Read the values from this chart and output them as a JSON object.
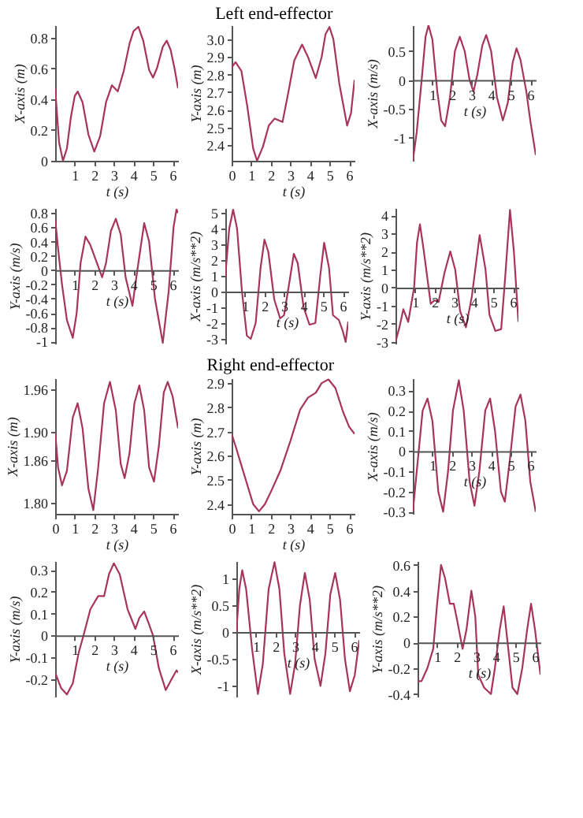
{
  "chart_data": [
    {
      "type": "line",
      "xlabel": "t (s)",
      "ylabel": "X-axis (m)",
      "color": "#a8345a",
      "xlim": [
        0,
        6.28
      ],
      "xticks": [
        1,
        2,
        3,
        4,
        5,
        6
      ],
      "ylim": [
        0,
        0.88
      ],
      "yticks": [
        0,
        0.2,
        0.4,
        0.6,
        0.8
      ],
      "x": [
        0,
        0.2,
        0.4,
        0.6,
        0.8,
        1.0,
        1.15,
        1.4,
        1.7,
        2.0,
        2.3,
        2.6,
        2.9,
        3.2,
        3.5,
        3.8,
        4.0,
        4.25,
        4.5,
        4.8,
        5.0,
        5.2,
        5.5,
        5.7,
        5.9,
        6.1,
        6.28
      ],
      "values": [
        0.47,
        0.12,
        0.0,
        0.08,
        0.28,
        0.42,
        0.45,
        0.38,
        0.17,
        0.06,
        0.16,
        0.38,
        0.49,
        0.45,
        0.58,
        0.76,
        0.84,
        0.87,
        0.78,
        0.59,
        0.54,
        0.6,
        0.74,
        0.78,
        0.72,
        0.6,
        0.47
      ]
    },
    {
      "type": "line",
      "title": "Left end-effector",
      "xlabel": "t (s)",
      "ylabel": "Y-axis (m)",
      "color": "#a8345a",
      "xlim": [
        0,
        6.28
      ],
      "xticks": [
        0,
        1,
        2,
        3,
        4,
        5,
        6
      ],
      "ylim": [
        2.31,
        3.08
      ],
      "yticks": [
        2.4,
        2.5,
        2.6,
        2.7,
        2.8,
        2.9,
        {
          "value": 3,
          "label": "3.0"
        }
      ],
      "x": [
        0,
        0.2,
        0.5,
        0.8,
        1.1,
        1.3,
        1.6,
        1.9,
        2.2,
        2.6,
        2.9,
        3.2,
        3.6,
        3.9,
        4.3,
        4.6,
        4.8,
        5.0,
        5.2,
        5.5,
        5.9,
        6.1,
        6.28
      ],
      "values": [
        2.84,
        2.87,
        2.82,
        2.62,
        2.38,
        2.31,
        2.39,
        2.51,
        2.55,
        2.53,
        2.7,
        2.88,
        2.97,
        2.9,
        2.78,
        2.9,
        3.03,
        3.07,
        3.0,
        2.75,
        2.51,
        2.58,
        2.77
      ]
    },
    {
      "type": "line",
      "xlabel": "t (s)",
      "ylabel": "X-axis (m/s)",
      "color": "#a8345a",
      "xlim": [
        0,
        6.28
      ],
      "xticks": [
        1,
        2,
        3,
        4,
        5,
        6
      ],
      "ylim": [
        -1.4,
        0.95
      ],
      "yticks": [
        -1,
        -0.5,
        0,
        0.5
      ],
      "x": [
        0,
        0.2,
        0.45,
        0.65,
        0.8,
        1.0,
        1.25,
        1.45,
        1.65,
        1.9,
        2.15,
        2.4,
        2.65,
        2.9,
        3.1,
        3.3,
        3.55,
        3.75,
        4.0,
        4.3,
        4.6,
        4.85,
        5.1,
        5.3,
        5.5,
        5.8,
        6.0,
        6.28
      ],
      "values": [
        -1.4,
        -0.9,
        0,
        0.75,
        0.95,
        0.7,
        -0.2,
        -0.7,
        -0.8,
        -0.3,
        0.5,
        0.75,
        0.5,
        0.0,
        -0.2,
        0.1,
        0.6,
        0.78,
        0.5,
        -0.3,
        -0.7,
        -0.4,
        0.3,
        0.55,
        0.35,
        -0.2,
        -0.7,
        -1.3
      ]
    },
    {
      "type": "line",
      "xlabel": "t (s)",
      "ylabel": "Y-axis (m/s)",
      "color": "#a8345a",
      "xlim": [
        0,
        6.28
      ],
      "xticks": [
        1,
        2,
        3,
        4,
        5,
        6
      ],
      "ylim": [
        -1.03,
        0.87
      ],
      "yticks": [
        -1,
        -0.8,
        -0.6,
        -0.4,
        -0.2,
        0,
        0.2,
        0.4,
        0.6,
        0.8
      ],
      "x": [
        0,
        0.15,
        0.35,
        0.6,
        0.9,
        1.1,
        1.3,
        1.55,
        1.8,
        2.0,
        2.2,
        2.4,
        2.6,
        2.85,
        3.1,
        3.35,
        3.6,
        3.95,
        4.2,
        4.55,
        4.8,
        5.1,
        5.5,
        5.8,
        6.05,
        6.2,
        6.28
      ],
      "values": [
        0.72,
        0.3,
        -0.2,
        -0.7,
        -0.95,
        -0.6,
        0.1,
        0.47,
        0.35,
        0.2,
        0.05,
        -0.1,
        0.1,
        0.55,
        0.72,
        0.5,
        -0.1,
        -0.5,
        0.0,
        0.66,
        0.4,
        -0.4,
        -1.02,
        -0.3,
        0.6,
        0.85,
        0.8
      ]
    },
    {
      "type": "line",
      "xlabel": "t (s)",
      "ylabel": "X-axis (m/s**2)",
      "color": "#a8345a",
      "xlim": [
        0,
        6.28
      ],
      "xticks": [
        1,
        2,
        3,
        4,
        5,
        6
      ],
      "ylim": [
        -3.3,
        5.3
      ],
      "yticks": [
        -3,
        -2,
        -1,
        0,
        1,
        2,
        3,
        4,
        5
      ],
      "x": [
        0,
        0.2,
        0.4,
        0.6,
        0.85,
        1.1,
        1.3,
        1.55,
        1.8,
        2.0,
        2.2,
        2.5,
        2.8,
        3.0,
        3.3,
        3.5,
        3.7,
        4.0,
        4.3,
        4.6,
        4.85,
        5.05,
        5.3,
        5.5,
        5.8,
        6.0,
        6.15,
        6.28
      ],
      "values": [
        1.0,
        4.0,
        5.2,
        4.0,
        0.0,
        -2.8,
        -3.0,
        -2.0,
        1.5,
        3.3,
        2.5,
        -0.5,
        -1.7,
        -1.5,
        0.8,
        2.4,
        1.8,
        -1.0,
        -2.1,
        -2.0,
        1.0,
        3.1,
        1.5,
        -1.5,
        -1.8,
        -2.5,
        -3.2,
        -1.9
      ]
    },
    {
      "type": "line",
      "xlabel": "t (s)",
      "ylabel": "Y-axis (m/s**2)",
      "color": "#a8345a",
      "xlim": [
        0,
        6.28
      ],
      "xticks": [
        1,
        2,
        3,
        4,
        5,
        6
      ],
      "ylim": [
        -3.1,
        4.4
      ],
      "yticks": [
        -3,
        -2,
        -1,
        0,
        1,
        2,
        3,
        4
      ],
      "x": [
        0,
        0.2,
        0.4,
        0.65,
        0.95,
        1.1,
        1.25,
        1.45,
        1.8,
        2.0,
        2.2,
        2.5,
        2.8,
        3.05,
        3.3,
        3.6,
        3.9,
        4.3,
        4.6,
        4.8,
        5.1,
        5.4,
        5.6,
        5.85,
        6.05,
        6.28
      ],
      "values": [
        -3.0,
        -2.2,
        -1.2,
        -1.9,
        0.0,
        2.5,
        3.5,
        2.0,
        -0.9,
        -0.7,
        -0.8,
        0.8,
        2.0,
        1.0,
        -1.3,
        -2.2,
        -0.5,
        2.9,
        1.0,
        -1.5,
        -2.4,
        -2.3,
        0.5,
        4.3,
        2.0,
        -1.9
      ]
    },
    {
      "type": "line",
      "xlabel": "t (s)",
      "ylabel": "X-axis (m)",
      "color": "#a8345a",
      "xlim": [
        0,
        6.28
      ],
      "xticks": [
        0,
        1,
        2,
        3,
        4,
        5,
        6
      ],
      "ylim": [
        1.785,
        1.975
      ],
      "yticks": [
        {
          "value": 1.8,
          "label": "1.80"
        },
        1.86,
        {
          "value": 1.9,
          "label": "1.90"
        },
        1.96
      ],
      "x": [
        0,
        0.15,
        0.35,
        0.6,
        0.9,
        1.15,
        1.4,
        1.7,
        1.95,
        2.2,
        2.5,
        2.8,
        3.1,
        3.35,
        3.55,
        3.8,
        4.05,
        4.3,
        4.55,
        4.8,
        5.05,
        5.3,
        5.55,
        5.75,
        6.0,
        6.28
      ],
      "values": [
        1.9,
        1.85,
        1.825,
        1.845,
        1.92,
        1.94,
        1.905,
        1.82,
        1.79,
        1.85,
        1.94,
        1.97,
        1.93,
        1.855,
        1.835,
        1.87,
        1.94,
        1.965,
        1.93,
        1.85,
        1.83,
        1.88,
        1.955,
        1.97,
        1.95,
        1.905
      ]
    },
    {
      "type": "line",
      "title": "Right end-effector",
      "xlabel": "t (s)",
      "ylabel": "Y-axis (m)",
      "color": "#a8345a",
      "xlim": [
        0,
        6.28
      ],
      "xticks": [
        0,
        1,
        2,
        3,
        4,
        5,
        6
      ],
      "ylim": [
        2.36,
        2.92
      ],
      "yticks": [
        2.4,
        2.5,
        2.6,
        2.7,
        2.8,
        2.9
      ],
      "x": [
        0,
        0.2,
        0.5,
        0.8,
        1.1,
        1.4,
        1.7,
        2.0,
        2.5,
        3.0,
        3.5,
        3.9,
        4.3,
        4.6,
        4.95,
        5.3,
        5.7,
        6.0,
        6.28
      ],
      "values": [
        2.69,
        2.64,
        2.56,
        2.48,
        2.4,
        2.37,
        2.4,
        2.45,
        2.54,
        2.66,
        2.79,
        2.84,
        2.86,
        2.9,
        2.915,
        2.88,
        2.78,
        2.72,
        2.69
      ]
    },
    {
      "type": "line",
      "xlabel": "t (s)",
      "ylabel": "X-axis (m/s)",
      "color": "#a8345a",
      "xlim": [
        0,
        6.28
      ],
      "xticks": [
        1,
        2,
        3,
        4,
        5,
        6
      ],
      "ylim": [
        -0.31,
        0.36
      ],
      "yticks": [
        -0.3,
        -0.2,
        -0.1,
        0,
        0.1,
        0.2,
        0.3
      ],
      "x": [
        0,
        0.3,
        0.5,
        0.75,
        1.0,
        1.3,
        1.55,
        1.8,
        2.05,
        2.35,
        2.6,
        2.9,
        3.15,
        3.4,
        3.7,
        3.95,
        4.2,
        4.5,
        4.7,
        4.95,
        5.25,
        5.5,
        5.75,
        6.0,
        6.28
      ],
      "values": [
        -0.3,
        0.0,
        0.2,
        0.26,
        0.15,
        -0.2,
        -0.3,
        -0.1,
        0.2,
        0.35,
        0.2,
        -0.15,
        -0.27,
        -0.1,
        0.2,
        0.26,
        0.1,
        -0.2,
        -0.25,
        -0.05,
        0.22,
        0.28,
        0.15,
        -0.15,
        -0.3
      ]
    },
    {
      "type": "line",
      "xlabel": "t (s)",
      "ylabel": "Y-axis (m/s)",
      "color": "#a8345a",
      "xlim": [
        0,
        6.28
      ],
      "xticks": [
        1,
        2,
        3,
        4,
        5,
        6
      ],
      "ylim": [
        -0.28,
        0.34
      ],
      "yticks": [
        -0.2,
        -0.1,
        0,
        0.1,
        0.2,
        0.3
      ],
      "x": [
        0,
        0.3,
        0.6,
        0.9,
        1.2,
        1.45,
        1.8,
        2.2,
        2.5,
        2.75,
        3.0,
        3.3,
        3.7,
        4.1,
        4.3,
        4.55,
        4.8,
        5.0,
        5.3,
        5.65,
        5.95,
        6.2,
        6.28
      ],
      "values": [
        -0.17,
        -0.24,
        -0.27,
        -0.22,
        -0.08,
        0.0,
        0.12,
        0.18,
        0.18,
        0.28,
        0.33,
        0.28,
        0.12,
        0.03,
        0.08,
        0.11,
        0.05,
        0.0,
        -0.15,
        -0.25,
        -0.2,
        -0.16,
        -0.17
      ]
    },
    {
      "type": "line",
      "xlabel": "t (s)",
      "ylabel": "X-axis (m/s**2)",
      "color": "#a8345a",
      "xlim": [
        0,
        6.28
      ],
      "xticks": [
        1,
        2,
        3,
        4,
        5,
        6
      ],
      "ylim": [
        -1.2,
        1.32
      ],
      "yticks": [
        -1,
        -0.5,
        0,
        0.5,
        1
      ],
      "x": [
        0,
        0.15,
        0.3,
        0.5,
        0.8,
        1.1,
        1.35,
        1.65,
        1.95,
        2.2,
        2.45,
        2.75,
        3.0,
        3.25,
        3.5,
        3.75,
        4.0,
        4.3,
        4.55,
        4.8,
        5.05,
        5.3,
        5.55,
        5.8,
        6.05,
        6.28
      ],
      "values": [
        0,
        0.8,
        1.15,
        0.8,
        -0.3,
        -1.15,
        -0.6,
        0.8,
        1.3,
        0.8,
        -0.4,
        -1.15,
        -0.6,
        0.5,
        1.1,
        0.6,
        -0.5,
        -1.0,
        -0.4,
        0.7,
        1.1,
        0.6,
        -0.5,
        -1.1,
        -0.8,
        -0.15
      ]
    },
    {
      "type": "line",
      "xlabel": "t (s)",
      "ylabel": "Y-axis (m/s**2)",
      "color": "#a8345a",
      "xlim": [
        0,
        6.28
      ],
      "xticks": [
        1,
        2,
        3,
        4,
        5,
        6
      ],
      "ylim": [
        -0.42,
        0.63
      ],
      "yticks": [
        -0.4,
        -0.2,
        0,
        0.2,
        0.4,
        0.6
      ],
      "x": [
        0,
        0.2,
        0.5,
        0.8,
        1.0,
        1.2,
        1.4,
        1.65,
        1.85,
        2.05,
        2.3,
        2.5,
        2.75,
        2.95,
        3.1,
        3.4,
        3.75,
        3.95,
        4.2,
        4.4,
        4.6,
        4.85,
        5.1,
        5.35,
        5.6,
        5.8,
        6.0,
        6.28
      ],
      "values": [
        -0.3,
        -0.3,
        -0.2,
        -0.05,
        0.3,
        0.6,
        0.5,
        0.3,
        0.3,
        0.15,
        -0.05,
        0.1,
        0.4,
        0.2,
        -0.25,
        -0.35,
        -0.4,
        -0.2,
        0.1,
        0.28,
        0.0,
        -0.35,
        -0.4,
        -0.2,
        0.1,
        0.3,
        0.1,
        -0.25
      ]
    }
  ]
}
